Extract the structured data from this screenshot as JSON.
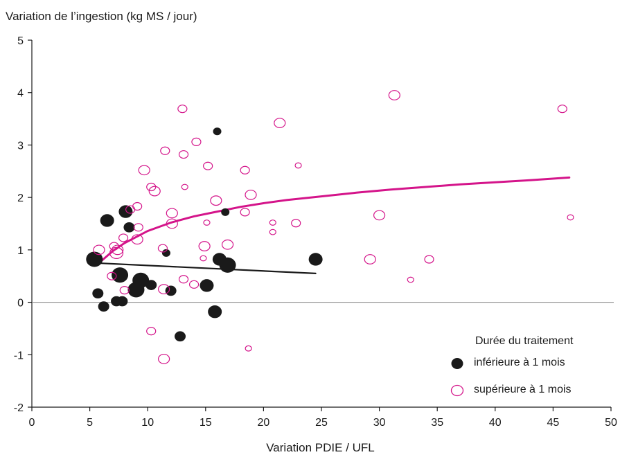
{
  "chart_data": {
    "type": "scatter",
    "ylabel": "Variation de l’ingestion (kg MS / jour)",
    "xlabel": "Variation PDIE / UFL",
    "xlim": [
      0,
      50
    ],
    "ylim": [
      -2,
      5
    ],
    "xticks": [
      0,
      5,
      10,
      15,
      20,
      25,
      30,
      35,
      40,
      45,
      50
    ],
    "yticks": [
      -2,
      -1,
      0,
      1,
      2,
      3,
      4,
      5
    ],
    "colors": {
      "short": "#1a1a1a",
      "long": "#d4148a"
    },
    "legend": {
      "title": "Durée du traitement",
      "position": "bottom-right",
      "items": [
        "inférieure à 1 mois",
        "supérieure à 1 mois"
      ]
    },
    "series": [
      {
        "name": "inférieure à 1 mois",
        "marker": "filled-circle",
        "points": [
          {
            "x": 5.4,
            "y": 0.82,
            "size": 3
          },
          {
            "x": 5.7,
            "y": 0.17,
            "size": 1
          },
          {
            "x": 6.2,
            "y": -0.08,
            "size": 1
          },
          {
            "x": 6.5,
            "y": 1.56,
            "size": 2
          },
          {
            "x": 7.3,
            "y": 0.02,
            "size": 1
          },
          {
            "x": 7.8,
            "y": 0.02,
            "size": 1
          },
          {
            "x": 7.6,
            "y": 0.52,
            "size": 3
          },
          {
            "x": 8.1,
            "y": 1.73,
            "size": 2
          },
          {
            "x": 8.4,
            "y": 1.43,
            "size": 1
          },
          {
            "x": 9.0,
            "y": 0.24,
            "size": 3
          },
          {
            "x": 9.4,
            "y": 0.42,
            "size": 3
          },
          {
            "x": 10.3,
            "y": 0.33,
            "size": 1
          },
          {
            "x": 11.6,
            "y": 0.94,
            "size": 0
          },
          {
            "x": 12.0,
            "y": 0.22,
            "size": 1
          },
          {
            "x": 12.8,
            "y": -0.65,
            "size": 1
          },
          {
            "x": 15.1,
            "y": 0.32,
            "size": 2
          },
          {
            "x": 15.8,
            "y": -0.18,
            "size": 2
          },
          {
            "x": 16.0,
            "y": 3.26,
            "size": 0
          },
          {
            "x": 16.2,
            "y": 0.82,
            "size": 2
          },
          {
            "x": 16.7,
            "y": 1.72,
            "size": 0
          },
          {
            "x": 16.9,
            "y": 0.71,
            "size": 3
          },
          {
            "x": 24.5,
            "y": 0.82,
            "size": 2
          }
        ],
        "trend": [
          {
            "x": 5.5,
            "y": 0.75
          },
          {
            "x": 24.5,
            "y": 0.55
          }
        ]
      },
      {
        "name": "supérieure à 1 mois",
        "marker": "open-circle",
        "points": [
          {
            "x": 5.8,
            "y": 1.0,
            "size": 1
          },
          {
            "x": 6.9,
            "y": 0.5,
            "size": 0
          },
          {
            "x": 7.1,
            "y": 1.07,
            "size": 0
          },
          {
            "x": 7.3,
            "y": 0.94,
            "size": 2
          },
          {
            "x": 7.4,
            "y": 1.0,
            "size": 1
          },
          {
            "x": 7.9,
            "y": 1.23,
            "size": 0
          },
          {
            "x": 8.0,
            "y": 0.23,
            "size": 0
          },
          {
            "x": 8.5,
            "y": 1.77,
            "size": 0
          },
          {
            "x": 9.1,
            "y": 1.83,
            "size": 0
          },
          {
            "x": 9.1,
            "y": 1.2,
            "size": 1
          },
          {
            "x": 9.2,
            "y": 1.43,
            "size": 0
          },
          {
            "x": 9.7,
            "y": 2.52,
            "size": 1
          },
          {
            "x": 10.3,
            "y": -0.55,
            "size": 0
          },
          {
            "x": 10.3,
            "y": 2.2,
            "size": 0
          },
          {
            "x": 10.6,
            "y": 2.12,
            "size": 1
          },
          {
            "x": 11.3,
            "y": 1.03,
            "size": 0
          },
          {
            "x": 11.4,
            "y": 0.25,
            "size": 1
          },
          {
            "x": 11.4,
            "y": -1.08,
            "size": 1
          },
          {
            "x": 11.5,
            "y": 2.89,
            "size": 0
          },
          {
            "x": 12.1,
            "y": 1.7,
            "size": 1
          },
          {
            "x": 12.1,
            "y": 1.5,
            "size": 1
          },
          {
            "x": 13.0,
            "y": 3.69,
            "size": 0
          },
          {
            "x": 13.1,
            "y": 0.44,
            "size": 0
          },
          {
            "x": 13.1,
            "y": 2.82,
            "size": 0
          },
          {
            "x": 13.2,
            "y": 2.2,
            "size": -1
          },
          {
            "x": 14.0,
            "y": 0.34,
            "size": 0
          },
          {
            "x": 14.2,
            "y": 3.06,
            "size": 0
          },
          {
            "x": 14.8,
            "y": 0.84,
            "size": -1
          },
          {
            "x": 14.9,
            "y": 1.07,
            "size": 1
          },
          {
            "x": 15.1,
            "y": 1.52,
            "size": -1
          },
          {
            "x": 15.2,
            "y": 2.6,
            "size": 0
          },
          {
            "x": 15.9,
            "y": 1.94,
            "size": 1
          },
          {
            "x": 16.9,
            "y": 1.1,
            "size": 1
          },
          {
            "x": 18.4,
            "y": 2.52,
            "size": 0
          },
          {
            "x": 18.4,
            "y": 1.72,
            "size": 0
          },
          {
            "x": 18.7,
            "y": -0.88,
            "size": -1
          },
          {
            "x": 18.9,
            "y": 2.05,
            "size": 1
          },
          {
            "x": 20.8,
            "y": 1.52,
            "size": -1
          },
          {
            "x": 20.8,
            "y": 1.34,
            "size": -1
          },
          {
            "x": 21.4,
            "y": 3.42,
            "size": 1
          },
          {
            "x": 22.8,
            "y": 1.51,
            "size": 0
          },
          {
            "x": 23.0,
            "y": 2.61,
            "size": -1
          },
          {
            "x": 29.2,
            "y": 0.82,
            "size": 1
          },
          {
            "x": 30.0,
            "y": 1.66,
            "size": 1
          },
          {
            "x": 31.3,
            "y": 3.95,
            "size": 1
          },
          {
            "x": 32.7,
            "y": 0.43,
            "size": -1
          },
          {
            "x": 34.3,
            "y": 0.82,
            "size": 0
          },
          {
            "x": 45.8,
            "y": 3.69,
            "size": 0
          },
          {
            "x": 46.5,
            "y": 1.62,
            "size": -1
          }
        ],
        "trend": [
          {
            "x": 5.8,
            "y": 0.75
          },
          {
            "x": 7,
            "y": 0.98
          },
          {
            "x": 8,
            "y": 1.13
          },
          {
            "x": 10,
            "y": 1.36
          },
          {
            "x": 12,
            "y": 1.52
          },
          {
            "x": 14,
            "y": 1.64
          },
          {
            "x": 16,
            "y": 1.73
          },
          {
            "x": 18,
            "y": 1.82
          },
          {
            "x": 20,
            "y": 1.89
          },
          {
            "x": 22,
            "y": 1.95
          },
          {
            "x": 25,
            "y": 2.02
          },
          {
            "x": 28,
            "y": 2.09
          },
          {
            "x": 31,
            "y": 2.15
          },
          {
            "x": 34,
            "y": 2.2
          },
          {
            "x": 37,
            "y": 2.25
          },
          {
            "x": 40,
            "y": 2.29
          },
          {
            "x": 43,
            "y": 2.33
          },
          {
            "x": 46.4,
            "y": 2.38
          }
        ]
      }
    ]
  }
}
